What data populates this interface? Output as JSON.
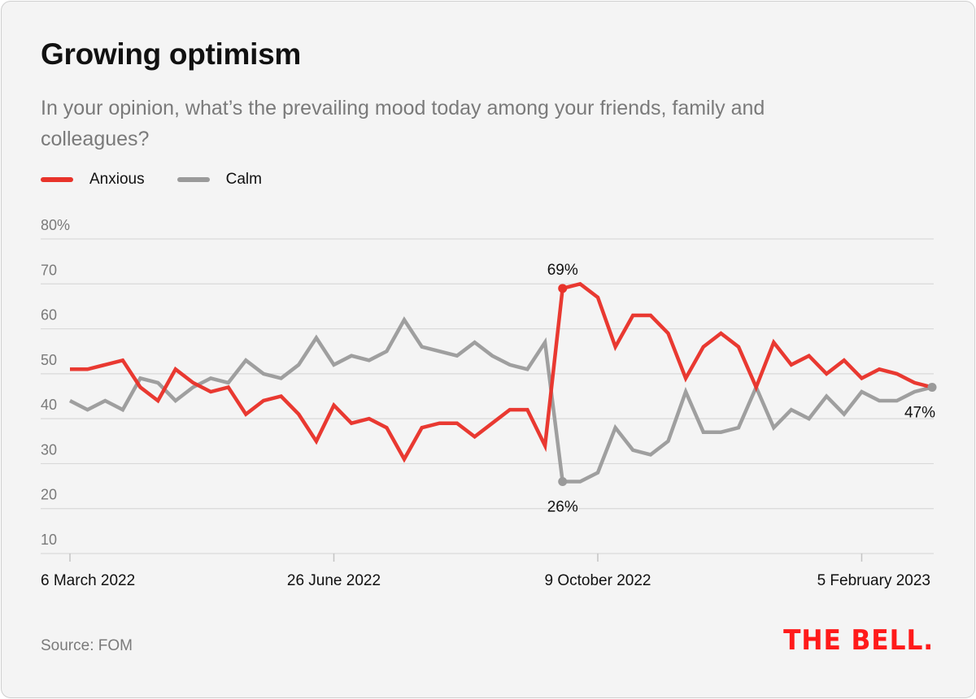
{
  "header": {
    "title": "Growing optimism",
    "subtitle": "In your opinion, what’s the prevailing mood today among your friends, family and colleagues?"
  },
  "legend": [
    {
      "label": "Anxious",
      "color": "#e8332a"
    },
    {
      "label": "Calm",
      "color": "#9a9a9a"
    }
  ],
  "footer": {
    "source": "Source: FOM",
    "logo": "THE BELL."
  },
  "chart_data": {
    "type": "line",
    "title": "Growing optimism",
    "subtitle": "In your opinion, what’s the prevailing mood today among your friends, family and colleagues?",
    "xlabel": "",
    "ylabel": "",
    "ylim": [
      10,
      80
    ],
    "yticks": [
      80,
      70,
      60,
      50,
      40,
      30,
      20,
      10
    ],
    "ytick_labels": [
      "80%",
      "70",
      "60",
      "50",
      "40",
      "30",
      "20",
      "10"
    ],
    "grid": true,
    "legend_position": "top-left",
    "x_count": 50,
    "xticks": [
      {
        "index": 0,
        "label": "6 March 2022"
      },
      {
        "index": 15,
        "label": "26 June 2022"
      },
      {
        "index": 30,
        "label": "9 October 2022"
      },
      {
        "index": 45,
        "label": "5 February 2023"
      }
    ],
    "series": [
      {
        "name": "Anxious",
        "color": "#e8332a",
        "values": [
          51,
          51,
          52,
          53,
          47,
          44,
          51,
          48,
          46,
          47,
          41,
          44,
          45,
          41,
          35,
          43,
          39,
          40,
          38,
          31,
          38,
          39,
          39,
          36,
          39,
          42,
          42,
          34,
          69,
          70,
          67,
          56,
          63,
          63,
          59,
          49,
          56,
          59,
          56,
          47,
          57,
          52,
          54,
          50,
          53,
          49,
          51,
          50,
          48,
          47
        ]
      },
      {
        "name": "Calm",
        "color": "#9a9a9a",
        "values": [
          44,
          42,
          44,
          42,
          49,
          48,
          44,
          47,
          49,
          48,
          53,
          50,
          49,
          52,
          58,
          52,
          54,
          53,
          55,
          62,
          56,
          55,
          54,
          57,
          54,
          52,
          51,
          57,
          26,
          26,
          28,
          38,
          33,
          32,
          35,
          46,
          37,
          37,
          38,
          47,
          38,
          42,
          40,
          45,
          41,
          46,
          44,
          44,
          46,
          47
        ]
      }
    ],
    "annotations": [
      {
        "series": "Anxious",
        "index": 28,
        "label": "69%",
        "position": "above"
      },
      {
        "series": "Calm",
        "index": 28,
        "label": "26%",
        "position": "below"
      },
      {
        "series": "Calm",
        "index": 49,
        "label": "47%",
        "position": "below"
      }
    ]
  }
}
